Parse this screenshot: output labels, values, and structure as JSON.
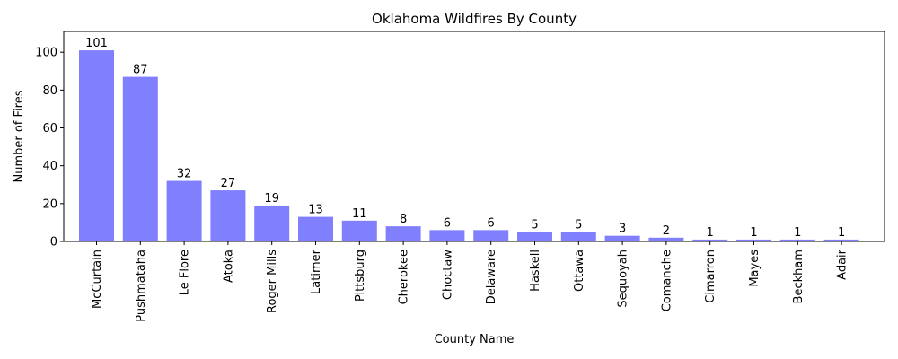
{
  "chart_data": {
    "type": "bar",
    "title": "Oklahoma Wildfires By County",
    "xlabel": "County Name",
    "ylabel": "Number of Fires",
    "categories": [
      "McCurtain",
      "Pushmataha",
      "Le Flore",
      "Atoka",
      "Roger Mills",
      "Latimer",
      "Pittsburg",
      "Cherokee",
      "Choctaw",
      "Delaware",
      "Haskell",
      "Ottawa",
      "Sequoyah",
      "Comanche",
      "Cimarron",
      "Mayes",
      "Beckham",
      "Adair"
    ],
    "values": [
      101,
      87,
      32,
      27,
      19,
      13,
      11,
      8,
      6,
      6,
      5,
      5,
      3,
      2,
      1,
      1,
      1,
      1
    ],
    "yticks": [
      0,
      20,
      40,
      60,
      80,
      100
    ],
    "ylim": [
      0,
      111
    ],
    "grid": false,
    "bar_color": "#8080ff"
  }
}
